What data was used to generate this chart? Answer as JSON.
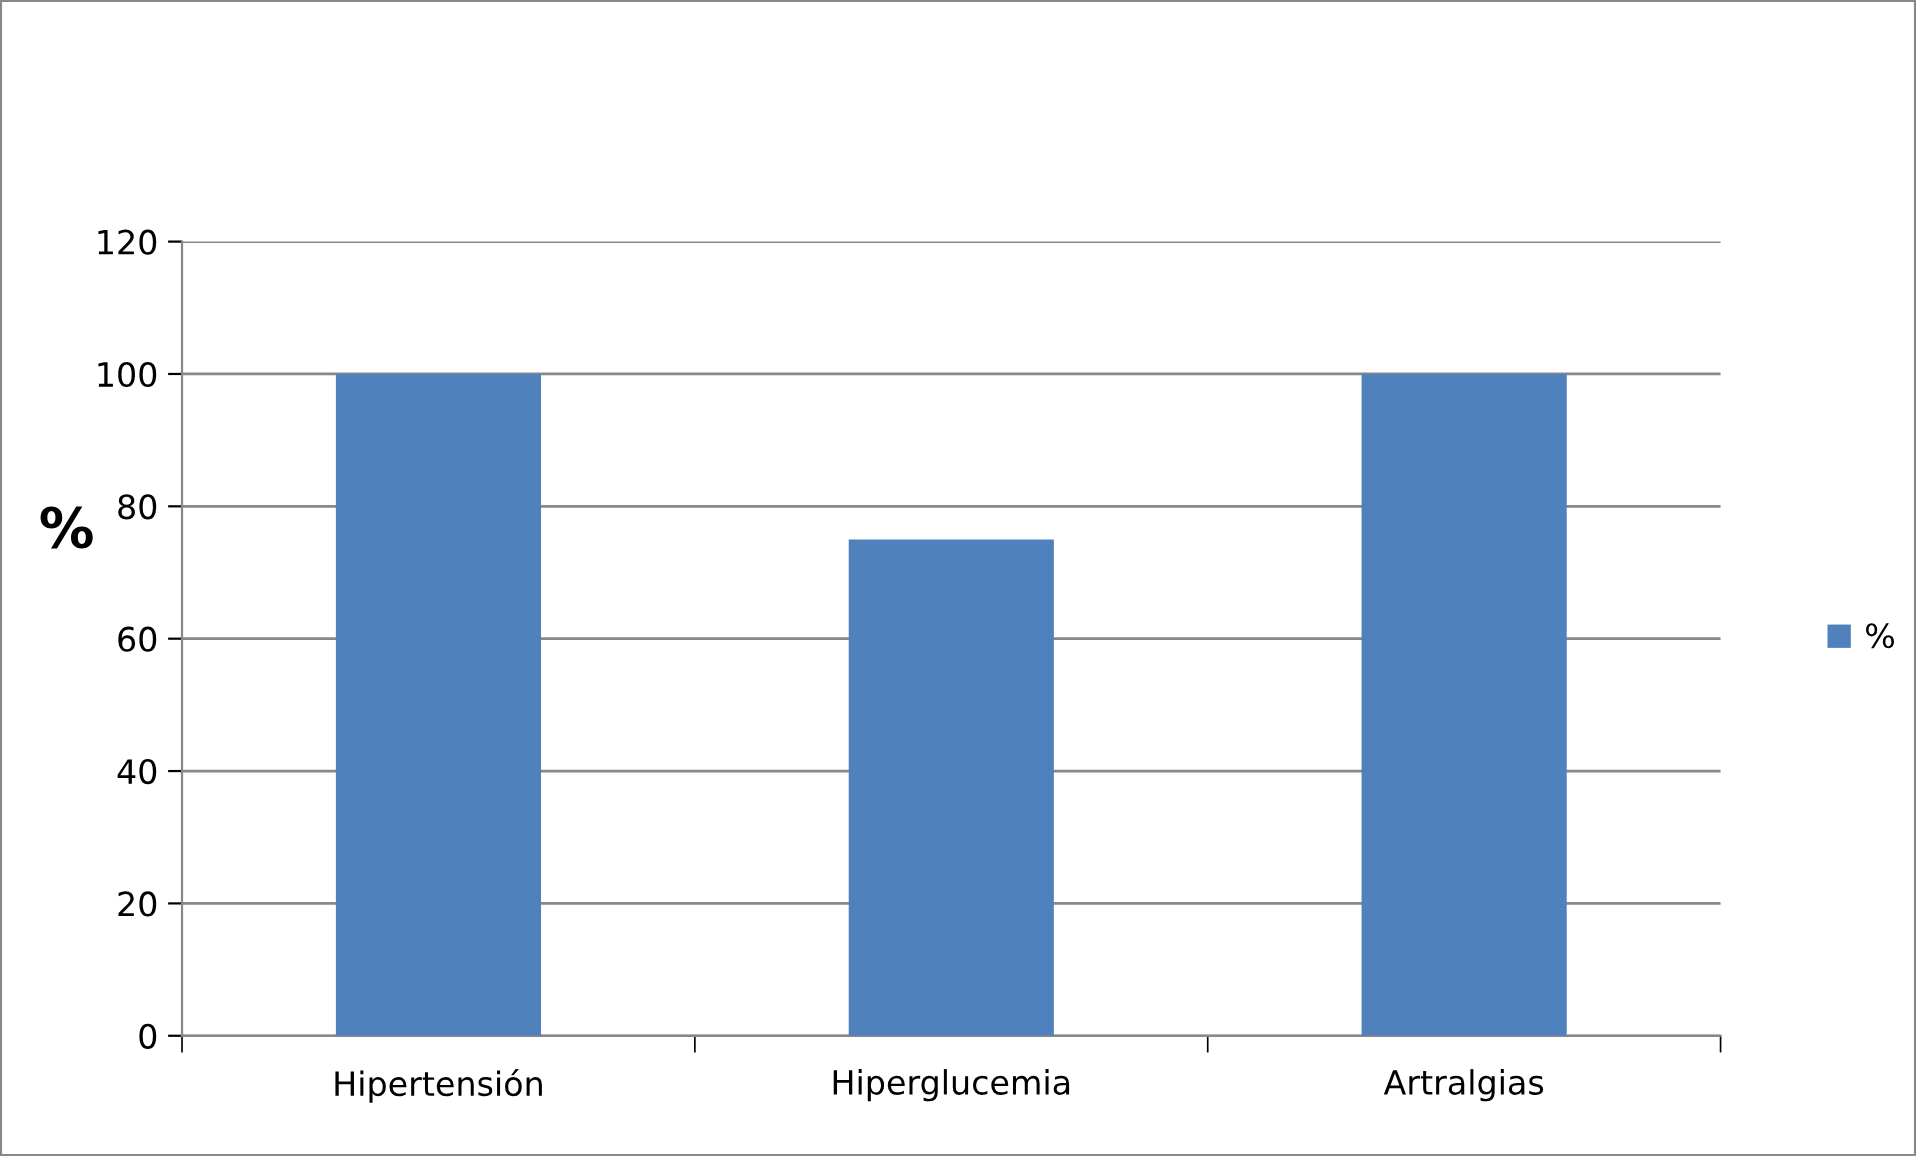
{
  "chart_data": {
    "type": "bar",
    "ylabel": "%",
    "categories": [
      "Hipertensión",
      "Hiperglucemia",
      "Artralgias"
    ],
    "series": [
      {
        "name": "%",
        "color": "#4f81bd",
        "values": [
          100,
          75,
          100
        ]
      }
    ],
    "ylim": [
      0,
      120
    ],
    "yticks": [
      0,
      20,
      40,
      60,
      80,
      100,
      120
    ],
    "grid": "y",
    "legend": "right"
  }
}
